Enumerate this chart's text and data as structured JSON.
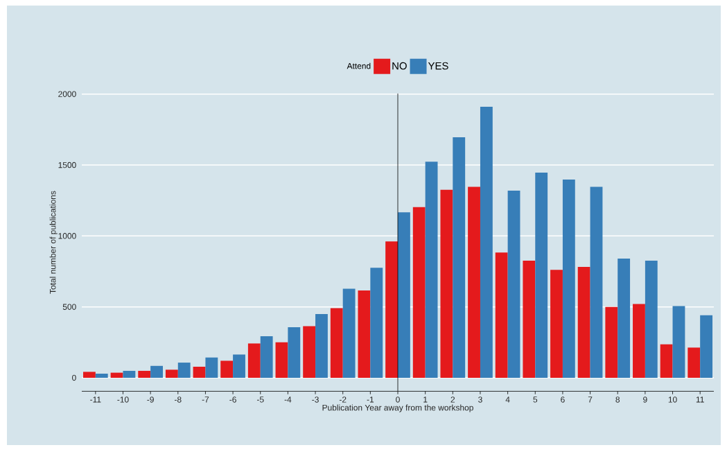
{
  "chart_data": {
    "type": "bar",
    "xlabel": "Publication Year away from the workshop",
    "ylabel": "Total number of publications",
    "legend_title": "Attend",
    "x": [
      -11,
      -10,
      -9,
      -8,
      -7,
      -6,
      -5,
      -4,
      -3,
      -2,
      -1,
      0,
      1,
      2,
      3,
      4,
      5,
      6,
      7,
      8,
      9,
      10,
      11
    ],
    "series": [
      {
        "name": "NO",
        "color": "#e41a1c",
        "values": [
          42,
          36,
          49,
          57,
          78,
          120,
          242,
          250,
          364,
          491,
          615,
          961,
          1203,
          1325,
          1346,
          883,
          826,
          761,
          782,
          499,
          520,
          236,
          213
        ]
      },
      {
        "name": "YES",
        "color": "#377eb8",
        "values": [
          29,
          49,
          84,
          107,
          143,
          164,
          293,
          356,
          449,
          628,
          776,
          1167,
          1523,
          1696,
          1911,
          1319,
          1447,
          1397,
          1346,
          840,
          826,
          506,
          441
        ]
      }
    ],
    "xlim": [
      -11.5,
      11.5
    ],
    "ylim": [
      -95,
      2005
    ],
    "xticks": [
      -11,
      -10,
      -9,
      -8,
      -7,
      -6,
      -5,
      -4,
      -3,
      -2,
      -1,
      0,
      1,
      2,
      3,
      4,
      5,
      6,
      7,
      8,
      9,
      10,
      11
    ],
    "yticks": [
      0,
      500,
      1000,
      1500,
      2000
    ],
    "ref_lines": [
      {
        "axis": "x",
        "value": 0,
        "color": "#000000"
      }
    ],
    "grid": "y",
    "legend": "top"
  }
}
